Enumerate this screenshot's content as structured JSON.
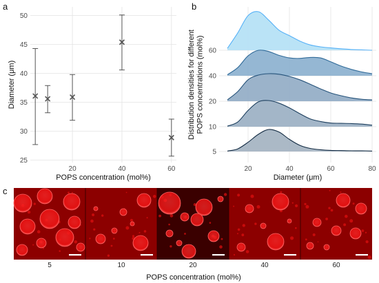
{
  "panel_a": {
    "letter": "a",
    "chart_data": {
      "type": "scatter",
      "title": "",
      "xlabel": "POPS concentration (mol%)",
      "ylabel": "Diameter (μm)",
      "xlim": [
        3,
        62
      ],
      "ylim": [
        24.6,
        51.5
      ],
      "x_ticks": [
        20,
        40,
        60
      ],
      "y_ticks": [
        25,
        30,
        35,
        40,
        45,
        50
      ],
      "grid": true,
      "legend": "none",
      "points": [
        {
          "x": 5,
          "y": 36.1,
          "low": 27.7,
          "high": 44.3
        },
        {
          "x": 10,
          "y": 35.6,
          "low": 33.2,
          "high": 37.9
        },
        {
          "x": 20,
          "y": 35.9,
          "low": 31.9,
          "high": 39.8
        },
        {
          "x": 40,
          "y": 45.4,
          "low": 40.6,
          "high": 50.1
        },
        {
          "x": 60,
          "y": 28.9,
          "low": 25.7,
          "high": 32.1
        }
      ]
    }
  },
  "panel_b": {
    "letter": "b",
    "chart_data": {
      "type": "area",
      "subtype": "ridgeline",
      "title": "",
      "xlabel": "Diameter (μm)",
      "ylabel": "Distribution densities for different POPS concentrations (mol%)",
      "xlim": [
        6,
        82
      ],
      "x_ticks": [
        20,
        40,
        60,
        80
      ],
      "y_ticks": [
        5,
        10,
        20,
        40,
        60
      ],
      "grid": true,
      "legend": "none",
      "x": [
        10,
        15,
        20,
        25,
        30,
        35,
        40,
        45,
        50,
        55,
        60,
        65,
        70,
        75,
        80
      ],
      "series": [
        {
          "name": "5",
          "fill": "#a6b5c3",
          "stroke": "#132b43",
          "values": [
            0.02,
            0.12,
            0.42,
            0.78,
            1.0,
            0.88,
            0.55,
            0.28,
            0.14,
            0.08,
            0.05,
            0.04,
            0.03,
            0.03,
            0.02
          ]
        },
        {
          "name": "10",
          "fill": "#9eb2c5",
          "stroke": "#1d3f5e",
          "values": [
            0.02,
            0.18,
            0.62,
            0.95,
            1.0,
            0.9,
            0.72,
            0.5,
            0.3,
            0.2,
            0.14,
            0.13,
            0.12,
            0.1,
            0.06
          ]
        },
        {
          "name": "20",
          "fill": "#96afc7",
          "stroke": "#26537a",
          "values": [
            0.05,
            0.35,
            0.78,
            0.95,
            1.0,
            0.98,
            0.9,
            0.78,
            0.62,
            0.45,
            0.3,
            0.2,
            0.12,
            0.07,
            0.05
          ]
        },
        {
          "name": "40",
          "fill": "#8fb3d1",
          "stroke": "#306a98",
          "values": [
            0.04,
            0.32,
            0.78,
            1.0,
            0.95,
            0.8,
            0.7,
            0.68,
            0.72,
            0.7,
            0.55,
            0.38,
            0.25,
            0.15,
            0.08
          ]
        },
        {
          "name": "60",
          "fill": "#b6e2f5",
          "stroke": "#56b1f7",
          "values": [
            0.05,
            0.45,
            0.9,
            1.0,
            0.78,
            0.52,
            0.38,
            0.24,
            0.14,
            0.09,
            0.06,
            0.04,
            0.02,
            0.01,
            0.0
          ]
        }
      ]
    }
  },
  "panel_c": {
    "letter": "c",
    "xlabel": "POPS concentration (mol%)",
    "colors": {
      "background": "#8c0000",
      "vesicle": "#ff1e1e",
      "scale_bar": "#ffffff"
    },
    "images": [
      {
        "label": "5"
      },
      {
        "label": "10"
      },
      {
        "label": "20"
      },
      {
        "label": "40"
      },
      {
        "label": "60"
      }
    ]
  }
}
